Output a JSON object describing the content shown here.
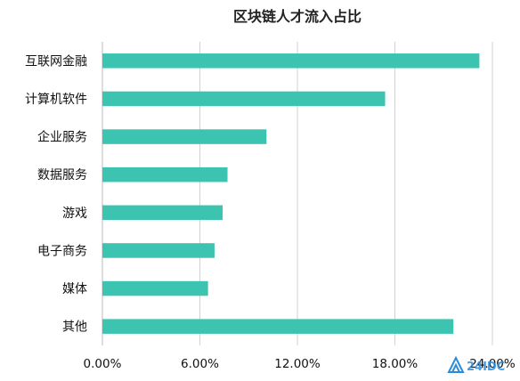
{
  "colors": {
    "bar": "#3cc4b1",
    "watermark": "#2b8bd9"
  },
  "watermark": {
    "text": "24IDC"
  },
  "chart_data": {
    "type": "bar",
    "orientation": "horizontal",
    "title": "区块链人才流入占比",
    "xlabel": "",
    "ylabel": "",
    "categories": [
      "互联网金融",
      "计算机软件",
      "企业服务",
      "数据服务",
      "游戏",
      "电子商务",
      "媒体",
      "其他"
    ],
    "values": [
      0.232,
      0.174,
      0.101,
      0.077,
      0.074,
      0.069,
      0.065,
      0.216
    ],
    "xlim": [
      0,
      0.24
    ],
    "xticks": [
      0,
      0.06,
      0.12,
      0.18,
      0.24
    ],
    "xtick_labels": [
      "0.00%",
      "6.00%",
      "12.00%",
      "18.00%",
      "24.00%"
    ],
    "grid": true,
    "legend": "none"
  }
}
